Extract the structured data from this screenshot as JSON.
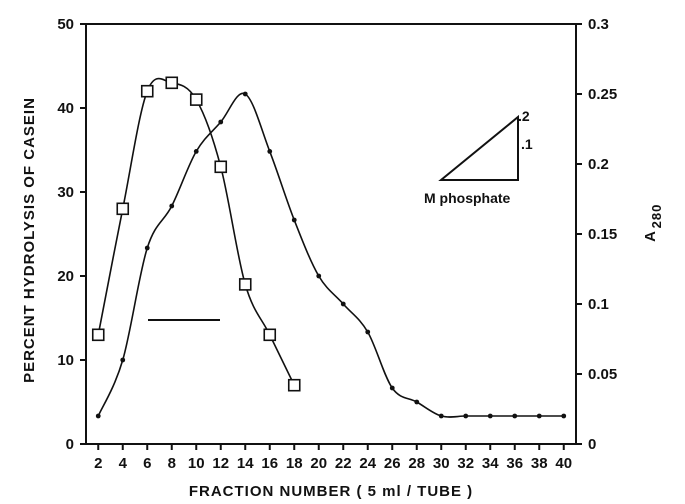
{
  "chart_data": {
    "type": "line",
    "xlabel": "FRACTION NUMBER ( 5 ml / TUBE )",
    "ylabel_left": "PERCENT HYDROLYSIS OF CASEIN",
    "ylabel_right_main": "A",
    "ylabel_right_sub": "280",
    "xlim": [
      1,
      41
    ],
    "ylim_left": [
      0,
      50
    ],
    "ylim_right": [
      0,
      0.3
    ],
    "x_ticks": [
      2,
      4,
      6,
      8,
      10,
      12,
      14,
      16,
      18,
      20,
      22,
      24,
      26,
      28,
      30,
      32,
      34,
      36,
      38,
      40
    ],
    "y_ticks_left": [
      0,
      10,
      20,
      30,
      40,
      50
    ],
    "y_ticks_right": [
      0,
      0.05,
      0.1,
      0.15,
      0.2,
      0.25,
      0.3
    ],
    "y_tick_labels_right": [
      "0",
      "0.05",
      "0.1",
      "0.15",
      "0.2",
      "0.25",
      "0.3"
    ],
    "grid": false,
    "series": [
      {
        "marker": "open-square",
        "axis": "left",
        "x": [
          2,
          4,
          6,
          8,
          10,
          12,
          14,
          16,
          18
        ],
        "y": [
          13,
          28,
          42,
          43,
          41,
          33,
          19,
          13,
          7
        ]
      },
      {
        "marker": "dot",
        "axis": "right",
        "x": [
          2,
          4,
          6,
          8,
          10,
          12,
          14,
          16,
          18,
          20,
          22,
          24,
          26,
          28,
          30,
          32,
          34,
          36,
          38,
          40
        ],
        "y": [
          0.02,
          0.06,
          0.14,
          0.17,
          0.209,
          0.23,
          0.25,
          0.209,
          0.16,
          0.12,
          0.1,
          0.08,
          0.04,
          0.03,
          0.02,
          0.02,
          0.02,
          0.02,
          0.02,
          0.02
        ]
      }
    ],
    "annotations": {
      "gradient_label": "M phosphate",
      "gradient_top": ".2",
      "gradient_mid": ".1"
    }
  }
}
